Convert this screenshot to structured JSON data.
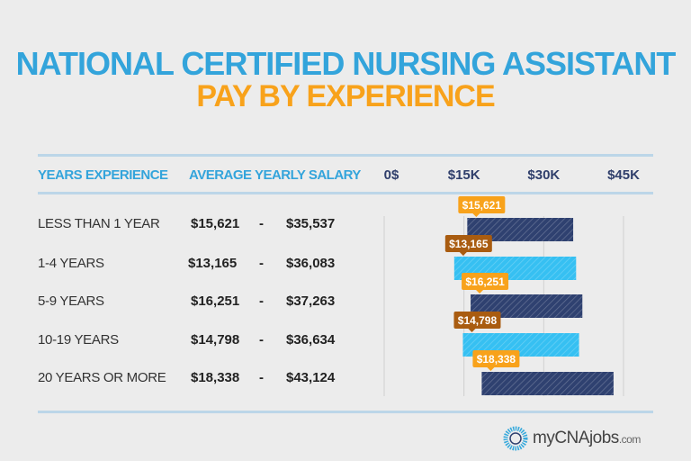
{
  "title_line1": "NATIONAL CERTIFIED NURSING ASSISTANT",
  "title_line2": "PAY BY EXPERIENCE",
  "headers": {
    "experience": "YEARS EXPERIENCE",
    "salary": "AVERAGE YEARLY SALARY"
  },
  "brand": {
    "name": "myCNAjobs",
    "suffix": ".com"
  },
  "colors": {
    "title_blue": "#33a4db",
    "title_orange": "#f8a21b",
    "bar_dark": "#2f4170",
    "bar_light": "#36c0f2",
    "label_orange": "#f8a21b",
    "label_brown": "#a95c10"
  },
  "chart_data": {
    "type": "bar",
    "orientation": "horizontal-range",
    "categories": [
      "LESS THAN 1 YEAR",
      "1-4 YEARS",
      "5-9 YEARS",
      "10-19 YEARS",
      "20 YEARS OR MORE"
    ],
    "low": [
      15621,
      13165,
      16251,
      14798,
      18338
    ],
    "high": [
      35537,
      36083,
      37263,
      36634,
      43124
    ],
    "low_labels": [
      "$15,621",
      "$13,165",
      "$16,251",
      "$14,798",
      "$18,338"
    ],
    "high_labels": [
      "$35,537",
      "$36,083",
      "$37,263",
      "$36,634",
      "$43,124"
    ],
    "dash": "-",
    "xticks": [
      0,
      15000,
      30000,
      45000
    ],
    "xtick_labels": [
      "0$",
      "$15K",
      "$30K",
      "$45K"
    ],
    "xlim": [
      0,
      45000
    ],
    "grid": true
  }
}
